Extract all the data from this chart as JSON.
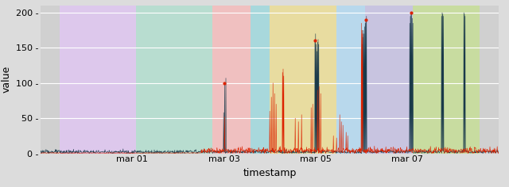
{
  "title": "",
  "xlabel": "timestamp",
  "ylabel": "value",
  "ylim": [
    0,
    210
  ],
  "xlim": [
    0,
    1440
  ],
  "xtick_positions": [
    288,
    576,
    864,
    1152
  ],
  "xtick_labels": [
    "mar 01",
    "mar 03",
    "mar 05",
    "mar 07"
  ],
  "ytick_positions": [
    0,
    50,
    100,
    150,
    200
  ],
  "ytick_labels": [
    "0 -",
    "50 -",
    "100 -",
    "150 -",
    "200 -"
  ],
  "bg_color": "#dcdcdc",
  "plot_bg": "#dcdcdc",
  "grid_color": "#ffffff",
  "bands": [
    {
      "xmin": 0,
      "xmax": 60,
      "color": "#d0d0d0"
    },
    {
      "xmin": 60,
      "xmax": 300,
      "color": "#ddc8ec"
    },
    {
      "xmin": 300,
      "xmax": 540,
      "color": "#b8ddd0"
    },
    {
      "xmin": 540,
      "xmax": 660,
      "color": "#f0c0c0"
    },
    {
      "xmin": 660,
      "xmax": 720,
      "color": "#a8d8dc"
    },
    {
      "xmin": 720,
      "xmax": 930,
      "color": "#e8dca0"
    },
    {
      "xmin": 930,
      "xmax": 1020,
      "color": "#b8d8ec"
    },
    {
      "xmin": 1020,
      "xmax": 1170,
      "color": "#c8c4e0"
    },
    {
      "xmin": 1170,
      "xmax": 1380,
      "color": "#c8dca0"
    },
    {
      "xmin": 1380,
      "xmax": 1440,
      "color": "#d0d0d0"
    }
  ],
  "series1_color": "#1a3a4a",
  "series2_color": "#dd2200",
  "figsize": [
    6.4,
    2.36
  ],
  "dpi": 100,
  "font_size": 8,
  "label_font_size": 9
}
